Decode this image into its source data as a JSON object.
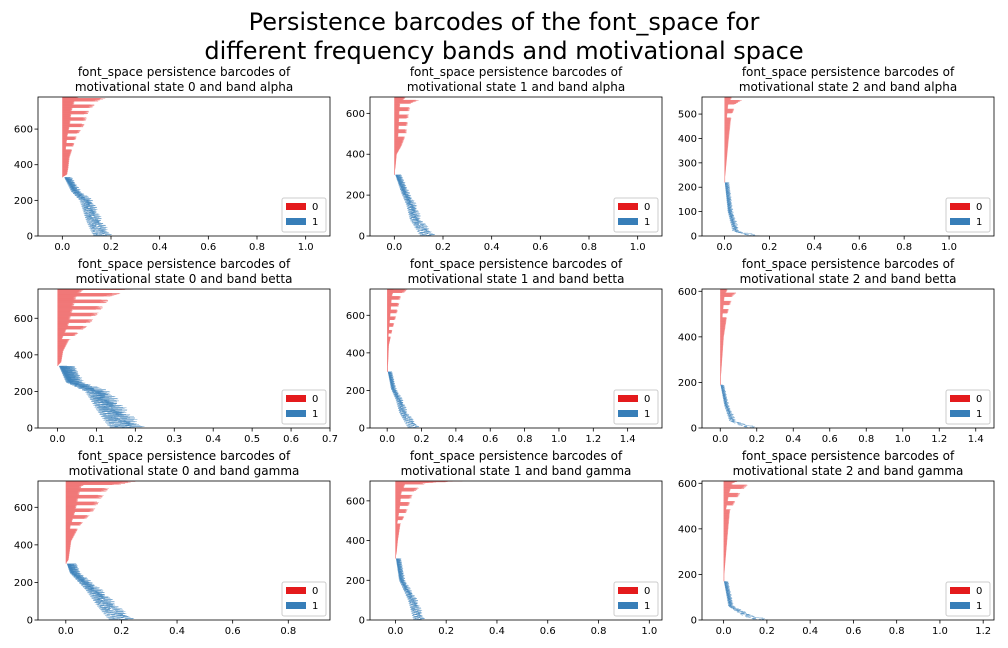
{
  "figure": {
    "title_line1": "Persistence barcodes of the font_space for",
    "title_line2": "different frequency bands and motivational space"
  },
  "legend_entries": [
    "0",
    "1"
  ],
  "colors": {
    "dim0": "#f07070",
    "dim0_legend": "#e41a1c",
    "dim1": "#377eb8"
  },
  "chart_data": [
    {
      "type": "barcode",
      "title_line1": "font_space persistence barcodes of",
      "title_line2": "motivational state 0 and band alpha",
      "xlim": [
        -0.1,
        1.1
      ],
      "ylim": [
        0,
        780
      ],
      "xticks": [
        0.0,
        0.2,
        0.4,
        0.6,
        0.8,
        1.0
      ],
      "yticks": [
        0,
        200,
        400,
        600
      ],
      "x_tick_labels": [
        "0.0",
        "0.2",
        "0.4",
        "0.6",
        "0.8",
        "1.0"
      ],
      "y_tick_labels": [
        "0",
        "200",
        "400",
        "600"
      ],
      "legend_position": "lower right",
      "series": [
        {
          "name": "0",
          "n_bars": 450,
          "index_range": [
            330,
            780
          ],
          "death_profile": [
            [
              330,
              0.0
            ],
            [
              345,
              0.02
            ],
            [
              380,
              0.025
            ],
            [
              440,
              0.03
            ],
            [
              560,
              0.06
            ],
            [
              620,
              0.09
            ],
            [
              700,
              0.11
            ],
            [
              760,
              0.15
            ],
            [
              780,
              0.2
            ]
          ]
        },
        {
          "name": "1",
          "n_bars": 330,
          "index_range": [
            0,
            330
          ],
          "birth_profile": [
            [
              0,
              0.18
            ],
            [
              80,
              0.14
            ],
            [
              200,
              0.1
            ],
            [
              250,
              0.05
            ],
            [
              330,
              0.01
            ]
          ],
          "persistence_max": 0.03
        }
      ]
    },
    {
      "type": "barcode",
      "title_line1": "font_space persistence barcodes of",
      "title_line2": "motivational state 1 and band alpha",
      "xlim": [
        -0.1,
        1.1
      ],
      "ylim": [
        0,
        680
      ],
      "xticks": [
        0.0,
        0.2,
        0.4,
        0.6,
        0.8,
        1.0
      ],
      "yticks": [
        0,
        200,
        400,
        600
      ],
      "x_tick_labels": [
        "0.0",
        "0.2",
        "0.4",
        "0.6",
        "0.8",
        "1.0"
      ],
      "y_tick_labels": [
        "0",
        "200",
        "400",
        "600"
      ],
      "legend_position": "lower right",
      "series": [
        {
          "name": "0",
          "n_bars": 380,
          "index_range": [
            300,
            680
          ],
          "death_profile": [
            [
              300,
              0.0
            ],
            [
              340,
              0.005
            ],
            [
              400,
              0.01
            ],
            [
              440,
              0.03
            ],
            [
              500,
              0.05
            ],
            [
              600,
              0.06
            ],
            [
              650,
              0.07
            ],
            [
              680,
              0.14
            ]
          ]
        },
        {
          "name": "1",
          "n_bars": 300,
          "index_range": [
            0,
            300
          ],
          "birth_profile": [
            [
              0,
              0.15
            ],
            [
              80,
              0.09
            ],
            [
              150,
              0.07
            ],
            [
              210,
              0.04
            ],
            [
              300,
              0.005
            ]
          ],
          "persistence_max": 0.025
        }
      ]
    },
    {
      "type": "barcode",
      "title_line1": "font_space persistence barcodes of",
      "title_line2": "motivational state 2 and band alpha",
      "xlim": [
        -0.1,
        1.2
      ],
      "ylim": [
        0,
        570
      ],
      "xticks": [
        0.0,
        0.2,
        0.4,
        0.6,
        0.8,
        1.0
      ],
      "yticks": [
        0,
        100,
        200,
        300,
        400,
        500
      ],
      "x_tick_labels": [
        "0.0",
        "0.2",
        "0.4",
        "0.6",
        "0.8",
        "1.0"
      ],
      "y_tick_labels": [
        "0",
        "100",
        "200",
        "300",
        "400",
        "500"
      ],
      "legend_position": "lower right",
      "series": [
        {
          "name": "0",
          "n_bars": 350,
          "index_range": [
            220,
            570
          ],
          "death_profile": [
            [
              220,
              0.0
            ],
            [
              260,
              0.005
            ],
            [
              400,
              0.02
            ],
            [
              480,
              0.03
            ],
            [
              540,
              0.05
            ],
            [
              570,
              0.1
            ]
          ]
        },
        {
          "name": "1",
          "n_bars": 220,
          "index_range": [
            0,
            220
          ],
          "birth_profile": [
            [
              0,
              0.15
            ],
            [
              20,
              0.05
            ],
            [
              100,
              0.02
            ],
            [
              220,
              0.002
            ]
          ],
          "persistence_max": 0.02
        }
      ]
    },
    {
      "type": "barcode",
      "title_line1": "font_space persistence barcodes of",
      "title_line2": "motivational state 0 and band betta",
      "xlim": [
        -0.05,
        0.7
      ],
      "ylim": [
        0,
        760
      ],
      "xticks": [
        0.0,
        0.1,
        0.2,
        0.3,
        0.4,
        0.5,
        0.6,
        0.7
      ],
      "yticks": [
        0,
        200,
        400,
        600
      ],
      "x_tick_labels": [
        "0.0",
        "0.1",
        "0.2",
        "0.3",
        "0.4",
        "0.5",
        "0.6",
        "0.7"
      ],
      "y_tick_labels": [
        "0",
        "200",
        "400",
        "600"
      ],
      "legend_position": "lower right",
      "series": [
        {
          "name": "0",
          "n_bars": 420,
          "index_range": [
            340,
            760
          ],
          "death_profile": [
            [
              340,
              0.0
            ],
            [
              360,
              0.01
            ],
            [
              420,
              0.015
            ],
            [
              480,
              0.03
            ],
            [
              560,
              0.08
            ],
            [
              640,
              0.11
            ],
            [
              720,
              0.14
            ],
            [
              760,
              0.2
            ]
          ]
        },
        {
          "name": "1",
          "n_bars": 340,
          "index_range": [
            0,
            340
          ],
          "birth_profile": [
            [
              0,
              0.19
            ],
            [
              80,
              0.15
            ],
            [
              200,
              0.1
            ],
            [
              250,
              0.03
            ],
            [
              340,
              0.005
            ]
          ],
          "persistence_max": 0.04
        }
      ]
    },
    {
      "type": "barcode",
      "title_line1": "font_space persistence barcodes of",
      "title_line2": "motivational state 1 and band betta",
      "xlim": [
        -0.1,
        1.6
      ],
      "ylim": [
        0,
        740
      ],
      "xticks": [
        0.0,
        0.2,
        0.4,
        0.6,
        0.8,
        1.0,
        1.2,
        1.4
      ],
      "yticks": [
        0,
        200,
        400,
        600
      ],
      "x_tick_labels": [
        "0.0",
        "0.2",
        "0.4",
        "0.6",
        "0.8",
        "1.0",
        "1.2",
        "1.4"
      ],
      "y_tick_labels": [
        "0",
        "200",
        "400",
        "600"
      ],
      "legend_position": "lower right",
      "series": [
        {
          "name": "0",
          "n_bars": 440,
          "index_range": [
            300,
            740
          ],
          "death_profile": [
            [
              300,
              0.0
            ],
            [
              340,
              0.005
            ],
            [
              440,
              0.01
            ],
            [
              520,
              0.03
            ],
            [
              620,
              0.06
            ],
            [
              700,
              0.08
            ],
            [
              740,
              0.12
            ]
          ]
        },
        {
          "name": "1",
          "n_bars": 300,
          "index_range": [
            0,
            300
          ],
          "birth_profile": [
            [
              0,
              0.17
            ],
            [
              80,
              0.1
            ],
            [
              150,
              0.07
            ],
            [
              210,
              0.03
            ],
            [
              300,
              0.005
            ]
          ],
          "persistence_max": 0.025
        }
      ]
    },
    {
      "type": "barcode",
      "title_line1": "font_space persistence barcodes of",
      "title_line2": "motivational state 2 and band betta",
      "xlim": [
        -0.1,
        1.5
      ],
      "ylim": [
        0,
        610
      ],
      "xticks": [
        0.0,
        0.2,
        0.4,
        0.6,
        0.8,
        1.0,
        1.2,
        1.4
      ],
      "yticks": [
        0,
        200,
        400,
        600
      ],
      "x_tick_labels": [
        "0.0",
        "0.2",
        "0.4",
        "0.6",
        "0.8",
        "1.0",
        "1.2",
        "1.4"
      ],
      "y_tick_labels": [
        "0",
        "200",
        "400",
        "600"
      ],
      "legend_position": "lower right",
      "series": [
        {
          "name": "0",
          "n_bars": 420,
          "index_range": [
            190,
            610
          ],
          "death_profile": [
            [
              190,
              0.0
            ],
            [
              240,
              0.005
            ],
            [
              400,
              0.02
            ],
            [
              500,
              0.04
            ],
            [
              580,
              0.07
            ],
            [
              610,
              0.12
            ]
          ]
        },
        {
          "name": "1",
          "n_bars": 190,
          "index_range": [
            0,
            190
          ],
          "birth_profile": [
            [
              0,
              0.2
            ],
            [
              30,
              0.07
            ],
            [
              100,
              0.03
            ],
            [
              190,
              0.002
            ]
          ],
          "persistence_max": 0.02
        }
      ]
    },
    {
      "type": "barcode",
      "title_line1": "font_space persistence barcodes of",
      "title_line2": "motivational state 0 and band gamma",
      "xlim": [
        -0.1,
        0.95
      ],
      "ylim": [
        0,
        740
      ],
      "xticks": [
        0.0,
        0.2,
        0.4,
        0.6,
        0.8
      ],
      "yticks": [
        0,
        200,
        400,
        600
      ],
      "x_tick_labels": [
        "0.0",
        "0.2",
        "0.4",
        "0.6",
        "0.8"
      ],
      "y_tick_labels": [
        "0",
        "200",
        "400",
        "600"
      ],
      "legend_position": "lower right",
      "series": [
        {
          "name": "0",
          "n_bars": 440,
          "index_range": [
            300,
            740
          ],
          "death_profile": [
            [
              300,
              0.0
            ],
            [
              320,
              0.01
            ],
            [
              420,
              0.02
            ],
            [
              500,
              0.05
            ],
            [
              580,
              0.1
            ],
            [
              650,
              0.13
            ],
            [
              710,
              0.16
            ],
            [
              740,
              0.26
            ]
          ]
        },
        {
          "name": "1",
          "n_bars": 300,
          "index_range": [
            0,
            300
          ],
          "birth_profile": [
            [
              0,
              0.22
            ],
            [
              60,
              0.17
            ],
            [
              160,
              0.1
            ],
            [
              250,
              0.02
            ],
            [
              300,
              0.005
            ]
          ],
          "persistence_max": 0.035
        }
      ]
    },
    {
      "type": "barcode",
      "title_line1": "font_space persistence barcodes of",
      "title_line2": "motivational state 1 and band gamma",
      "xlim": [
        -0.1,
        1.05
      ],
      "ylim": [
        0,
        700
      ],
      "xticks": [
        0.0,
        0.2,
        0.4,
        0.6,
        0.8,
        1.0
      ],
      "yticks": [
        0,
        200,
        400,
        600
      ],
      "x_tick_labels": [
        "0.0",
        "0.2",
        "0.4",
        "0.6",
        "0.8",
        "1.0"
      ],
      "y_tick_labels": [
        "0",
        "200",
        "400",
        "600"
      ],
      "legend_position": "lower right",
      "series": [
        {
          "name": "0",
          "n_bars": 390,
          "index_range": [
            310,
            700
          ],
          "death_profile": [
            [
              310,
              0.0
            ],
            [
              340,
              0.005
            ],
            [
              400,
              0.01
            ],
            [
              480,
              0.02
            ],
            [
              560,
              0.05
            ],
            [
              640,
              0.07
            ],
            [
              690,
              0.12
            ],
            [
              700,
              0.28
            ]
          ]
        },
        {
          "name": "1",
          "n_bars": 310,
          "index_range": [
            0,
            310
          ],
          "birth_profile": [
            [
              0,
              0.1
            ],
            [
              100,
              0.07
            ],
            [
              200,
              0.02
            ],
            [
              310,
              0.003
            ]
          ],
          "persistence_max": 0.02
        }
      ]
    },
    {
      "type": "barcode",
      "title_line1": "font_space persistence barcodes of",
      "title_line2": "motivational state 2 and band gamma",
      "xlim": [
        -0.1,
        1.25
      ],
      "ylim": [
        0,
        610
      ],
      "xticks": [
        0.0,
        0.2,
        0.4,
        0.6,
        0.8,
        1.0,
        1.2
      ],
      "yticks": [
        0,
        200,
        400,
        600
      ],
      "x_tick_labels": [
        "0.0",
        "0.2",
        "0.4",
        "0.6",
        "0.8",
        "1.0",
        "1.2"
      ],
      "y_tick_labels": [
        "0",
        "200",
        "400",
        "600"
      ],
      "legend_position": "lower right",
      "series": [
        {
          "name": "0",
          "n_bars": 440,
          "index_range": [
            170,
            610
          ],
          "death_profile": [
            [
              170,
              0.0
            ],
            [
              220,
              0.005
            ],
            [
              380,
              0.02
            ],
            [
              480,
              0.03
            ],
            [
              560,
              0.08
            ],
            [
              600,
              0.12
            ],
            [
              610,
              0.2
            ]
          ]
        },
        {
          "name": "1",
          "n_bars": 170,
          "index_range": [
            0,
            170
          ],
          "birth_profile": [
            [
              0,
              0.2
            ],
            [
              20,
              0.12
            ],
            [
              60,
              0.03
            ],
            [
              170,
              0.002
            ]
          ],
          "persistence_max": 0.02
        }
      ]
    }
  ]
}
